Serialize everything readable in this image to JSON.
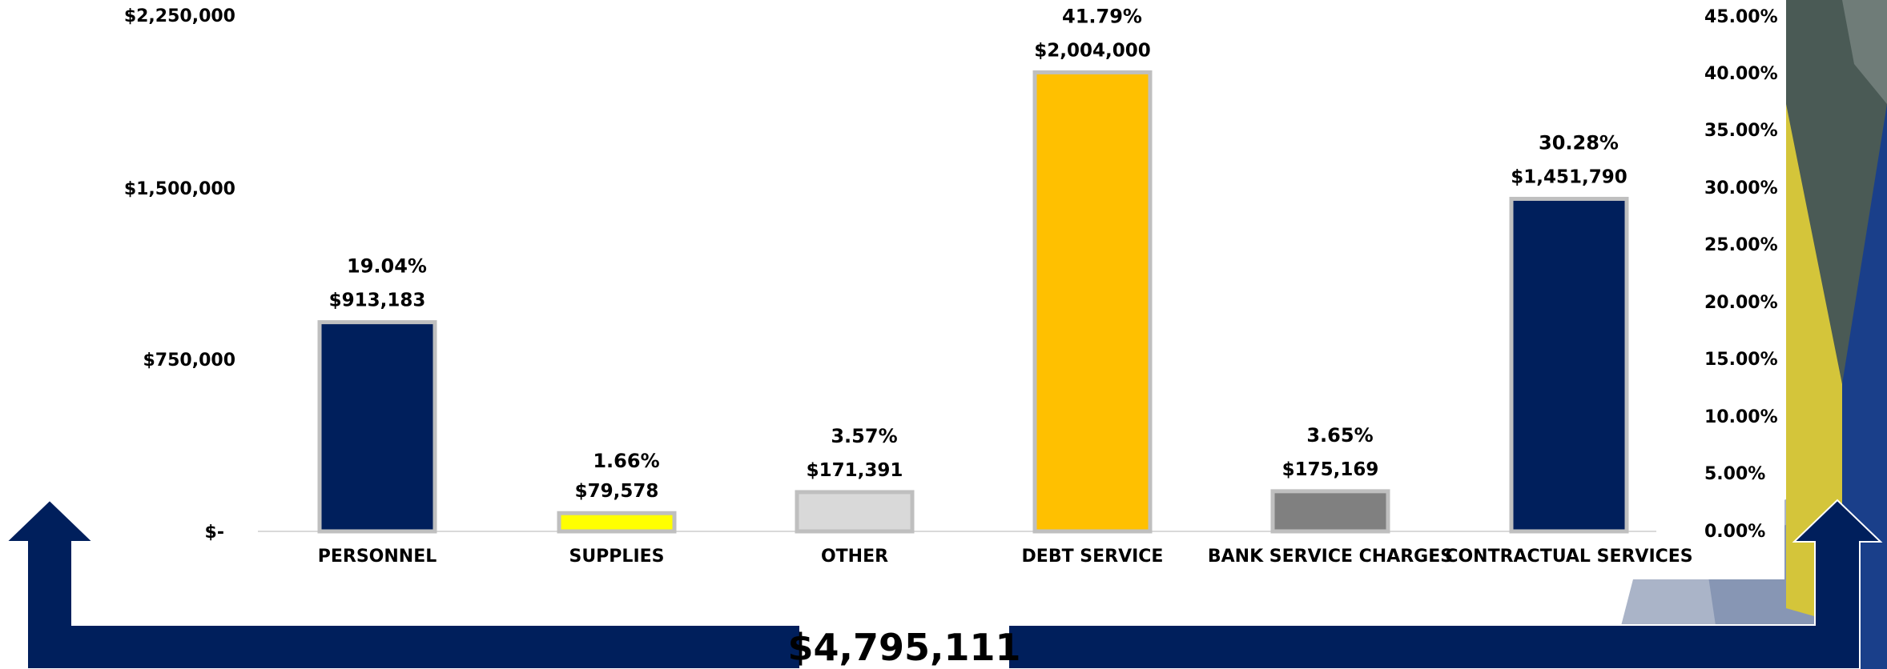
{
  "chart_data": {
    "type": "bar",
    "categories": [
      "PERSONNEL",
      "SUPPLIES",
      "OTHER",
      "DEBT SERVICE",
      "BANK SERVICE CHARGES",
      "CONTRACTUAL SERVICES"
    ],
    "values": [
      913183,
      79578,
      171391,
      2004000,
      175169,
      1451790
    ],
    "value_labels": [
      "$913,183",
      "$79,578",
      "$171,391",
      "$2,004,000",
      "$175,169",
      "$1,451,790"
    ],
    "percent_labels": [
      "19.04%",
      "1.66%",
      "3.57%",
      "41.79%",
      "3.65%",
      "30.28%"
    ],
    "percents": [
      19.04,
      1.66,
      3.57,
      41.79,
      3.65,
      30.28
    ],
    "bar_colors": [
      "#001f5c",
      "#ffff00",
      "#d9d9d9",
      "#ffc000",
      "#808080",
      "#001f5c"
    ],
    "bar_border_color": "#bfbfbf",
    "y_ticks": [
      {
        "value": 2250000,
        "label": "$2,250,000"
      },
      {
        "value": 1500000,
        "label": "$1,500,000"
      },
      {
        "value": 750000,
        "label": "$750,000"
      },
      {
        "value": 0,
        "label": "$-"
      }
    ],
    "ylim": [
      0,
      2250000
    ],
    "y2_ticks": [
      "0.00%",
      "5.00%",
      "10.00%",
      "15.00%",
      "20.00%",
      "25.00%",
      "30.00%",
      "35.00%",
      "40.00%",
      "45.00%"
    ],
    "y2lim": [
      0,
      45
    ],
    "total_label": "$4,795,111",
    "grid": false
  },
  "colors": {
    "arrow_fill": "#001f5c",
    "deco_dark": "#4a5a55",
    "deco_yellow": "#d4c53a",
    "deco_blue": "#1a3f8a",
    "deco_light": "#aab4c8"
  }
}
